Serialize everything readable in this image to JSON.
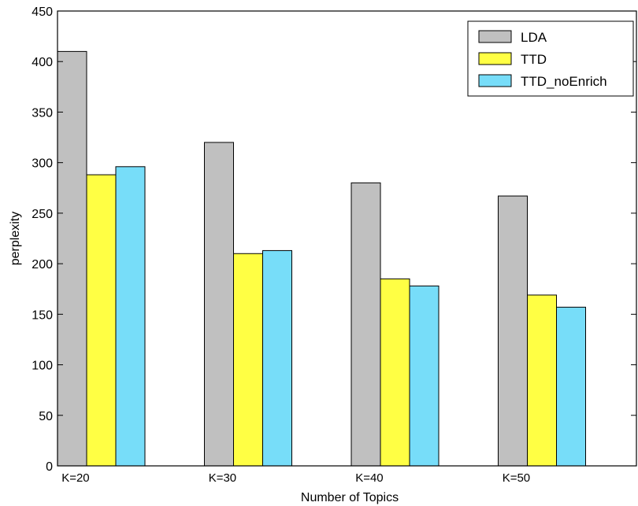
{
  "chart_data": {
    "type": "bar",
    "title": "",
    "xlabel": "Number of Topics",
    "ylabel": "perplexity",
    "ylim": [
      0,
      450
    ],
    "yticks": [
      0,
      50,
      100,
      150,
      200,
      250,
      300,
      350,
      400,
      450
    ],
    "grid": false,
    "legend_position": "top-right",
    "categories": [
      "K=20",
      "K=30",
      "K=40",
      "K=50"
    ],
    "series": [
      {
        "name": "LDA",
        "color": "#c0c0c0",
        "values": [
          410,
          320,
          280,
          267
        ]
      },
      {
        "name": "TTD",
        "color": "#ffff44",
        "values": [
          288,
          210,
          185,
          169
        ]
      },
      {
        "name": "TTD_noEnrich",
        "color": "#77ddf9",
        "values": [
          296,
          213,
          178,
          157
        ]
      }
    ]
  }
}
